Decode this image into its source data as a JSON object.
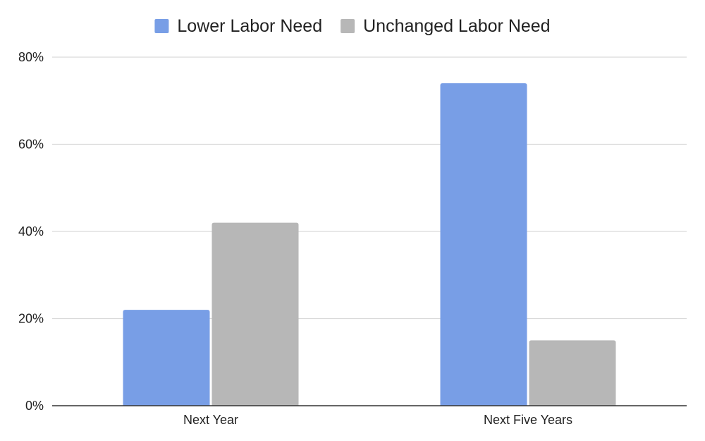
{
  "chart_data": {
    "type": "bar",
    "title": "",
    "xlabel": "",
    "ylabel": "",
    "categories": [
      "Next Year",
      "Next Five Years"
    ],
    "series": [
      {
        "name": "Lower Labor Need",
        "values": [
          22,
          74
        ],
        "color": "#789ee6"
      },
      {
        "name": "Unchanged Labor Need",
        "values": [
          42,
          15
        ],
        "color": "#b7b7b7"
      }
    ],
    "ylim": [
      0,
      80
    ],
    "yticks": [
      0,
      20,
      40,
      60,
      80
    ],
    "ytick_labels": [
      "0%",
      "20%",
      "40%",
      "60%",
      "80%"
    ],
    "grid": true,
    "legend_position": "top-center"
  }
}
